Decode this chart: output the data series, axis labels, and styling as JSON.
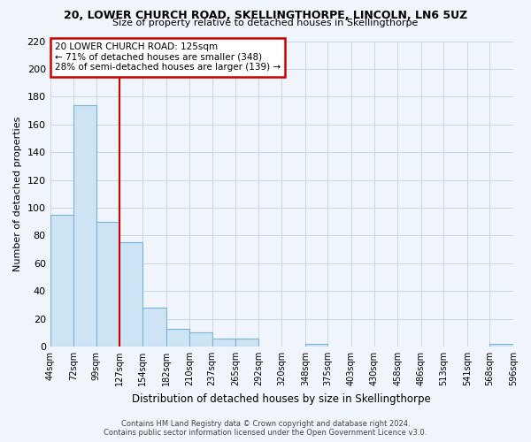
{
  "title_line1": "20, LOWER CHURCH ROAD, SKELLINGTHORPE, LINCOLN, LN6 5UZ",
  "title_line2": "Size of property relative to detached houses in Skellingthorpe",
  "xlabel": "Distribution of detached houses by size in Skellingthorpe",
  "ylabel": "Number of detached properties",
  "bar_color": "#cce4f4",
  "bar_edge_color": "#7ab3d4",
  "bins": [
    44,
    72,
    99,
    127,
    154,
    182,
    210,
    237,
    265,
    292,
    320,
    348,
    375,
    403,
    430,
    458,
    486,
    513,
    541,
    568,
    596
  ],
  "counts": [
    95,
    174,
    90,
    75,
    28,
    13,
    10,
    6,
    6,
    0,
    0,
    2,
    0,
    0,
    0,
    0,
    0,
    0,
    0,
    2
  ],
  "tick_labels": [
    "44sqm",
    "72sqm",
    "99sqm",
    "127sqm",
    "154sqm",
    "182sqm",
    "210sqm",
    "237sqm",
    "265sqm",
    "292sqm",
    "320sqm",
    "348sqm",
    "375sqm",
    "403sqm",
    "430sqm",
    "458sqm",
    "486sqm",
    "513sqm",
    "541sqm",
    "568sqm",
    "596sqm"
  ],
  "ylim": [
    0,
    220
  ],
  "yticks": [
    0,
    20,
    40,
    60,
    80,
    100,
    120,
    140,
    160,
    180,
    200,
    220
  ],
  "vline_color": "#cc0000",
  "vline_bin_index": 3,
  "annotation_text": "20 LOWER CHURCH ROAD: 125sqm\n← 71% of detached houses are smaller (348)\n28% of semi-detached houses are larger (139) →",
  "annotation_box_color": "white",
  "annotation_box_edge": "#cc0000",
  "footer_line1": "Contains HM Land Registry data © Crown copyright and database right 2024.",
  "footer_line2": "Contains public sector information licensed under the Open Government Licence v3.0.",
  "grid_color": "#c8d8e8",
  "background_color": "#f0f5fb"
}
